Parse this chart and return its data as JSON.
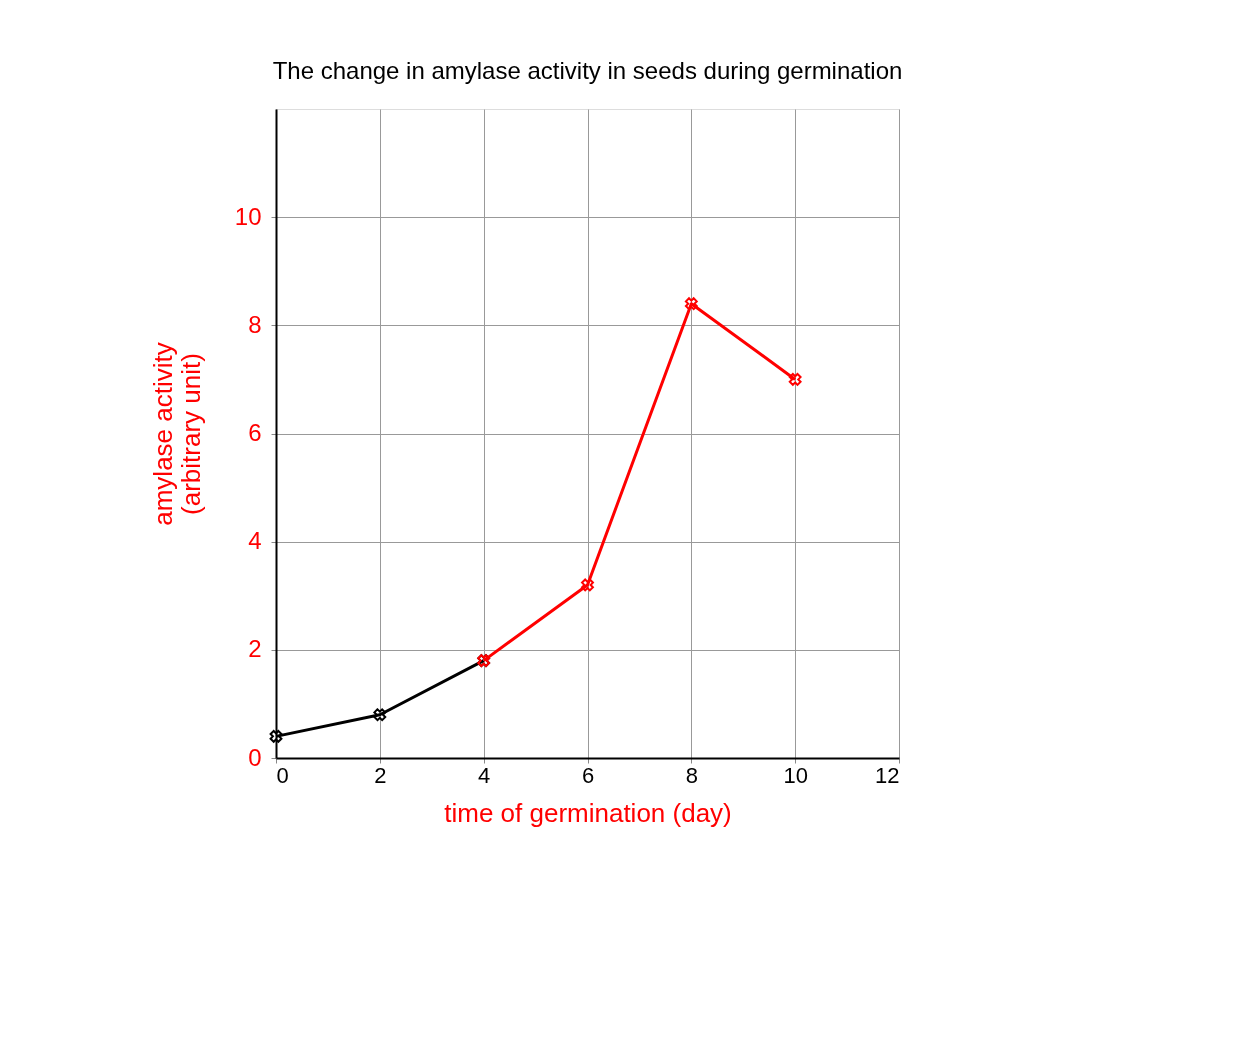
{
  "chart_data": {
    "type": "line",
    "title": "The change in amylase activity in seeds during germination",
    "xlabel": "time of germination (day)",
    "ylabel": "amylase activity\n(arbitrary unit)",
    "series": [
      {
        "color": "#000000",
        "x": [
          0,
          2,
          4
        ],
        "values": [
          0.4,
          0.8,
          1.8
        ]
      },
      {
        "color": "#ff0000",
        "x": [
          4,
          6,
          8,
          10
        ],
        "values": [
          1.8,
          3.2,
          8.4,
          7.0
        ]
      }
    ],
    "xlim": [
      0,
      12
    ],
    "xticks": [
      0,
      2,
      4,
      6,
      8,
      10,
      12
    ],
    "ylim": [
      0,
      12
    ],
    "yticks": [
      0,
      2,
      4,
      6,
      8,
      10
    ],
    "grid": true,
    "marker": "cross",
    "line_style": "solid"
  }
}
